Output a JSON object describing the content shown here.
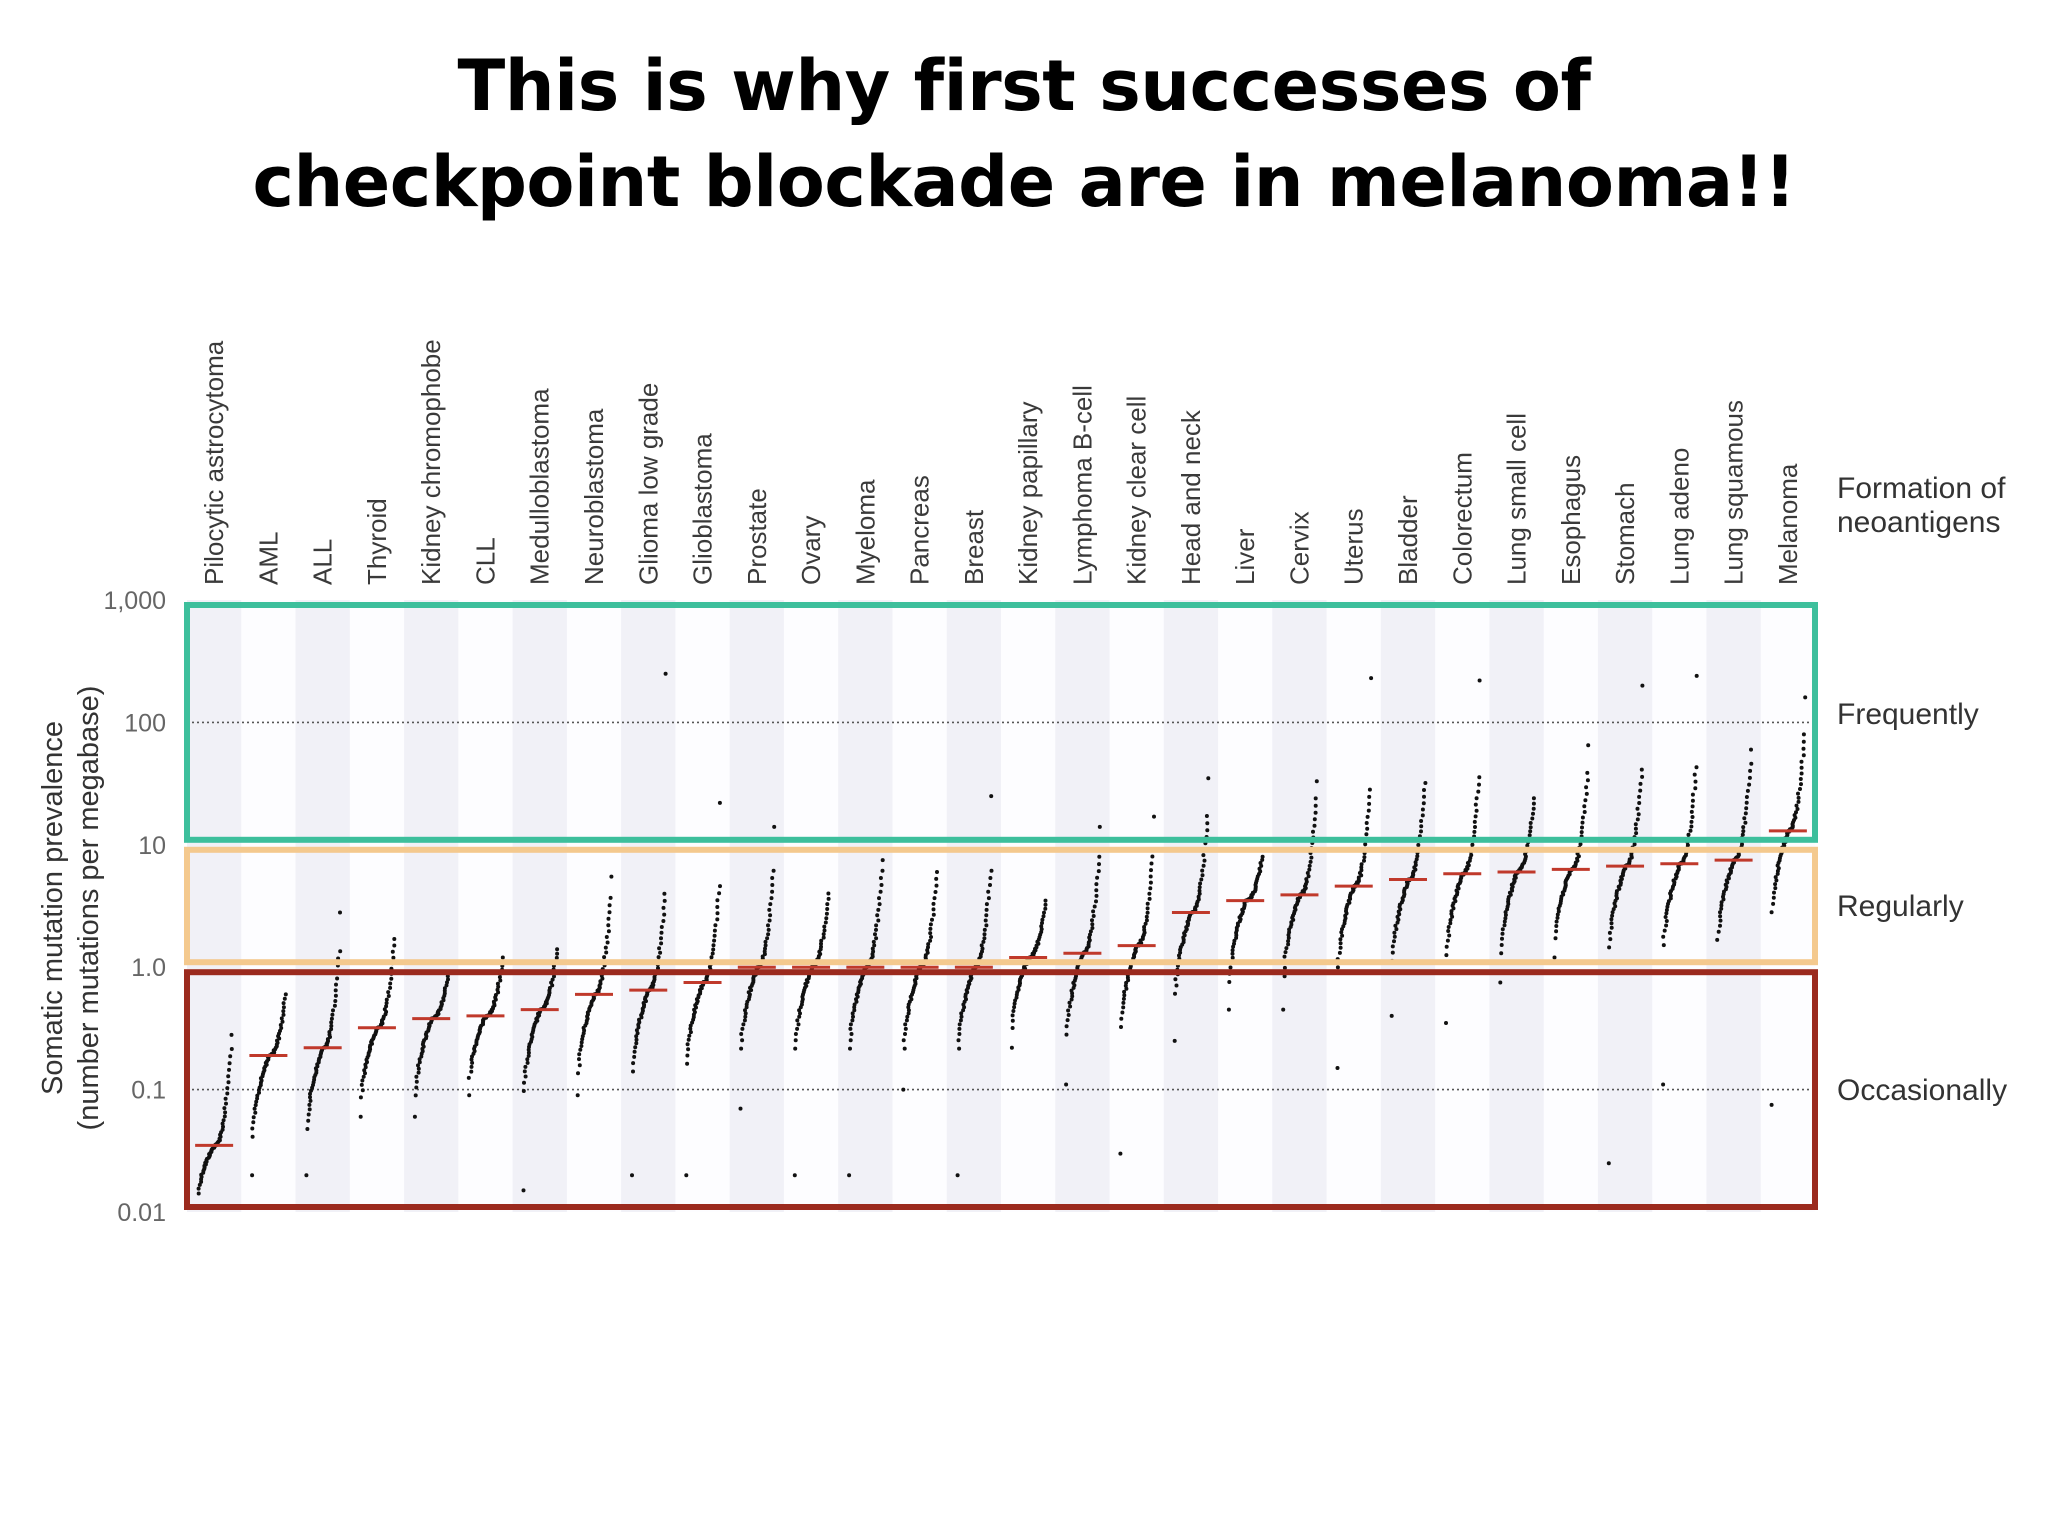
{
  "slide": {
    "title_line1": "This is why first successes of",
    "title_line2": "checkpoint blockade are in melanoma!!"
  },
  "chart_data": {
    "type": "scatter",
    "title": "",
    "ylabel_line1": "Somatic mutation prevalence",
    "ylabel_line2": "(number mutations per megabase)",
    "y_scale": "log",
    "ylim": [
      0.01,
      1000
    ],
    "yticks": [
      {
        "value": 1000,
        "label": "1,000"
      },
      {
        "value": 100,
        "label": "100"
      },
      {
        "value": 10,
        "label": "10"
      },
      {
        "value": 1,
        "label": "1.0"
      },
      {
        "value": 0.1,
        "label": "0.1"
      },
      {
        "value": 0.01,
        "label": "0.01"
      }
    ],
    "reference_lines": [
      100,
      0.1
    ],
    "header_label_line1": "Formation of",
    "header_label_line2": "neoantigens",
    "bands": [
      {
        "label": "Frequently",
        "from": 10,
        "to": 1000,
        "color": "#3dbf9c"
      },
      {
        "label": "Regularly",
        "from": 1,
        "to": 10,
        "color": "#f4c98e"
      },
      {
        "label": "Occasionally",
        "from": 0.01,
        "to": 1,
        "color": "#9b2a1e"
      }
    ],
    "median_color": "#c0392b",
    "categories": [
      {
        "name": "Pilocytic astrocytoma",
        "median": 0.035,
        "min": 0.011,
        "max": 0.28
      },
      {
        "name": "AML",
        "median": 0.19,
        "min": 0.02,
        "max": 0.6
      },
      {
        "name": "ALL",
        "median": 0.22,
        "min": 0.02,
        "max": 2.8
      },
      {
        "name": "Thyroid",
        "median": 0.32,
        "min": 0.06,
        "max": 1.7
      },
      {
        "name": "Kidney chromophobe",
        "median": 0.38,
        "min": 0.06,
        "max": 0.9
      },
      {
        "name": "CLL",
        "median": 0.4,
        "min": 0.09,
        "max": 1.2
      },
      {
        "name": "Medulloblastoma",
        "median": 0.45,
        "min": 0.015,
        "max": 1.4
      },
      {
        "name": "Neuroblastoma",
        "median": 0.6,
        "min": 0.09,
        "max": 5.5
      },
      {
        "name": "Glioma low grade",
        "median": 0.65,
        "min": 0.02,
        "max": 250
      },
      {
        "name": "Glioblastoma",
        "median": 0.75,
        "min": 0.02,
        "max": 22
      },
      {
        "name": "Prostate",
        "median": 1.0,
        "min": 0.07,
        "max": 14
      },
      {
        "name": "Ovary",
        "median": 1.0,
        "min": 0.02,
        "max": 4
      },
      {
        "name": "Myeloma",
        "median": 1.0,
        "min": 0.02,
        "max": 7.5
      },
      {
        "name": "Pancreas",
        "median": 1.0,
        "min": 0.1,
        "max": 6
      },
      {
        "name": "Breast",
        "median": 1.0,
        "min": 0.02,
        "max": 25
      },
      {
        "name": "Kidney papillary",
        "median": 1.2,
        "min": 0.22,
        "max": 3.5
      },
      {
        "name": "Lymphoma B-cell",
        "median": 1.3,
        "min": 0.11,
        "max": 14
      },
      {
        "name": "Kidney clear cell",
        "median": 1.5,
        "min": 0.03,
        "max": 17
      },
      {
        "name": "Head and neck",
        "median": 2.8,
        "min": 0.25,
        "max": 35
      },
      {
        "name": "Liver",
        "median": 3.5,
        "min": 0.45,
        "max": 8
      },
      {
        "name": "Cervix",
        "median": 3.9,
        "min": 0.45,
        "max": 33
      },
      {
        "name": "Uterus",
        "median": 4.6,
        "min": 0.15,
        "max": 230
      },
      {
        "name": "Bladder",
        "median": 5.2,
        "min": 0.4,
        "max": 32
      },
      {
        "name": "Colorectum",
        "median": 5.8,
        "min": 0.35,
        "max": 220
      },
      {
        "name": "Lung small cell",
        "median": 6.0,
        "min": 0.75,
        "max": 24
      },
      {
        "name": "Esophagus",
        "median": 6.3,
        "min": 1.2,
        "max": 65
      },
      {
        "name": "Stomach",
        "median": 6.7,
        "min": 0.025,
        "max": 200
      },
      {
        "name": "Lung adeno",
        "median": 7.0,
        "min": 0.11,
        "max": 240
      },
      {
        "name": "Lung squamous",
        "median": 7.5,
        "min": 1.1,
        "max": 60
      },
      {
        "name": "Melanoma",
        "median": 13,
        "min": 0.075,
        "max": 160
      }
    ]
  }
}
